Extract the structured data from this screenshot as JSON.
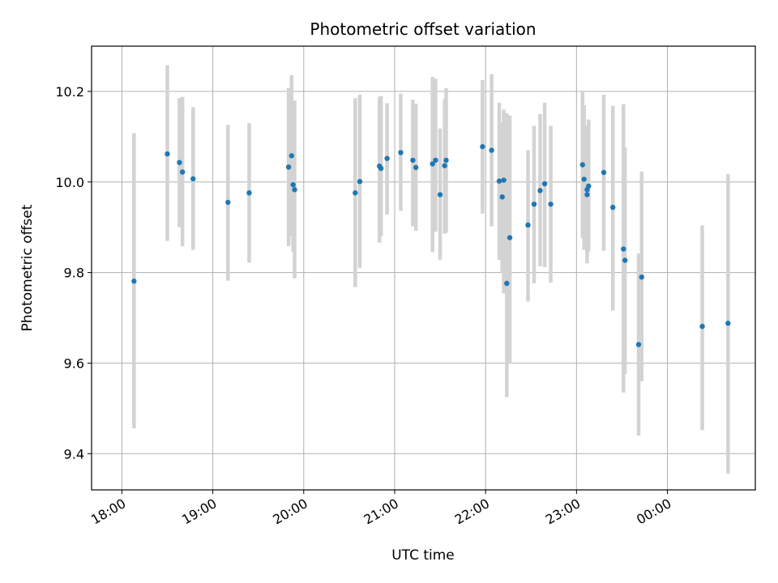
{
  "chart_data": {
    "type": "scatter",
    "title": "Photometric offset variation",
    "xlabel": "UTC time",
    "ylabel": "Photometric offset",
    "x_axis_kind": "time",
    "x_range": [
      "17:40",
      "00:58"
    ],
    "ylim": [
      9.32,
      10.3
    ],
    "x_ticks": [
      "18:00",
      "19:00",
      "20:00",
      "21:00",
      "22:00",
      "23:00",
      "00:00"
    ],
    "y_ticks": [
      "9.4",
      "9.6",
      "9.8",
      "10.0",
      "10.2"
    ],
    "y_tick_values": [
      9.4,
      9.6,
      9.8,
      10.0,
      10.2
    ],
    "grid": true,
    "marker_color": "#1f77b4",
    "errorbar_color": "#d3d3d3",
    "series": [
      {
        "x": [
          "18:08",
          "18:30",
          "18:38",
          "18:40",
          "18:47",
          "19:10",
          "19:24",
          "19:50",
          "19:52",
          "19:53",
          "19:54",
          "20:34",
          "20:37",
          "20:50",
          "20:51",
          "20:55",
          "21:04",
          "21:12",
          "21:14",
          "21:25",
          "21:27",
          "21:30",
          "21:33",
          "21:34",
          "21:58",
          "22:04",
          "22:09",
          "22:11",
          "22:12",
          "22:14",
          "22:16",
          "22:28",
          "22:32",
          "22:36",
          "22:39",
          "22:43",
          "23:04",
          "23:05",
          "23:07",
          "23:07",
          "23:08",
          "23:18",
          "23:24",
          "23:31",
          "23:32",
          "23:41",
          "23:43",
          "00:23",
          "00:40"
        ],
        "y": [
          9.781,
          10.062,
          10.043,
          10.022,
          10.007,
          9.955,
          9.976,
          10.033,
          10.058,
          9.994,
          9.983,
          9.976,
          10.001,
          10.035,
          10.03,
          10.052,
          10.065,
          10.048,
          10.032,
          10.04,
          10.048,
          9.972,
          10.036,
          10.048,
          10.078,
          10.07,
          10.002,
          9.967,
          10.004,
          9.776,
          9.877,
          9.905,
          9.951,
          9.981,
          9.996,
          9.951,
          10.038,
          10.006,
          9.983,
          9.972,
          9.991,
          10.021,
          9.944,
          9.852,
          9.827,
          9.641,
          9.79,
          9.681,
          9.688
        ],
        "y_low": [
          9.456,
          9.87,
          9.9,
          9.858,
          9.85,
          9.782,
          9.822,
          9.858,
          9.88,
          9.846,
          9.787,
          9.768,
          9.81,
          9.866,
          9.88,
          9.928,
          9.936,
          9.902,
          9.892,
          9.845,
          9.89,
          9.828,
          9.886,
          9.888,
          9.93,
          9.902,
          9.828,
          9.8,
          9.754,
          9.525,
          9.6,
          9.736,
          9.776,
          9.814,
          9.812,
          9.778,
          9.876,
          9.85,
          9.84,
          9.82,
          9.846,
          9.848,
          9.716,
          9.535,
          9.576,
          9.44,
          9.56,
          9.452,
          9.356
        ],
        "y_high": [
          10.108,
          10.258,
          10.185,
          10.188,
          10.165,
          10.126,
          10.13,
          10.208,
          10.236,
          10.13,
          10.18,
          10.185,
          10.193,
          10.188,
          10.19,
          10.174,
          10.195,
          10.182,
          10.173,
          10.232,
          10.228,
          10.118,
          10.183,
          10.207,
          10.225,
          10.238,
          10.175,
          10.132,
          10.16,
          10.152,
          10.147,
          10.07,
          10.124,
          10.15,
          10.175,
          10.124,
          10.2,
          10.17,
          10.125,
          10.118,
          10.138,
          10.193,
          10.168,
          10.172,
          10.076,
          9.842,
          10.023,
          9.904,
          10.018
        ]
      }
    ]
  }
}
